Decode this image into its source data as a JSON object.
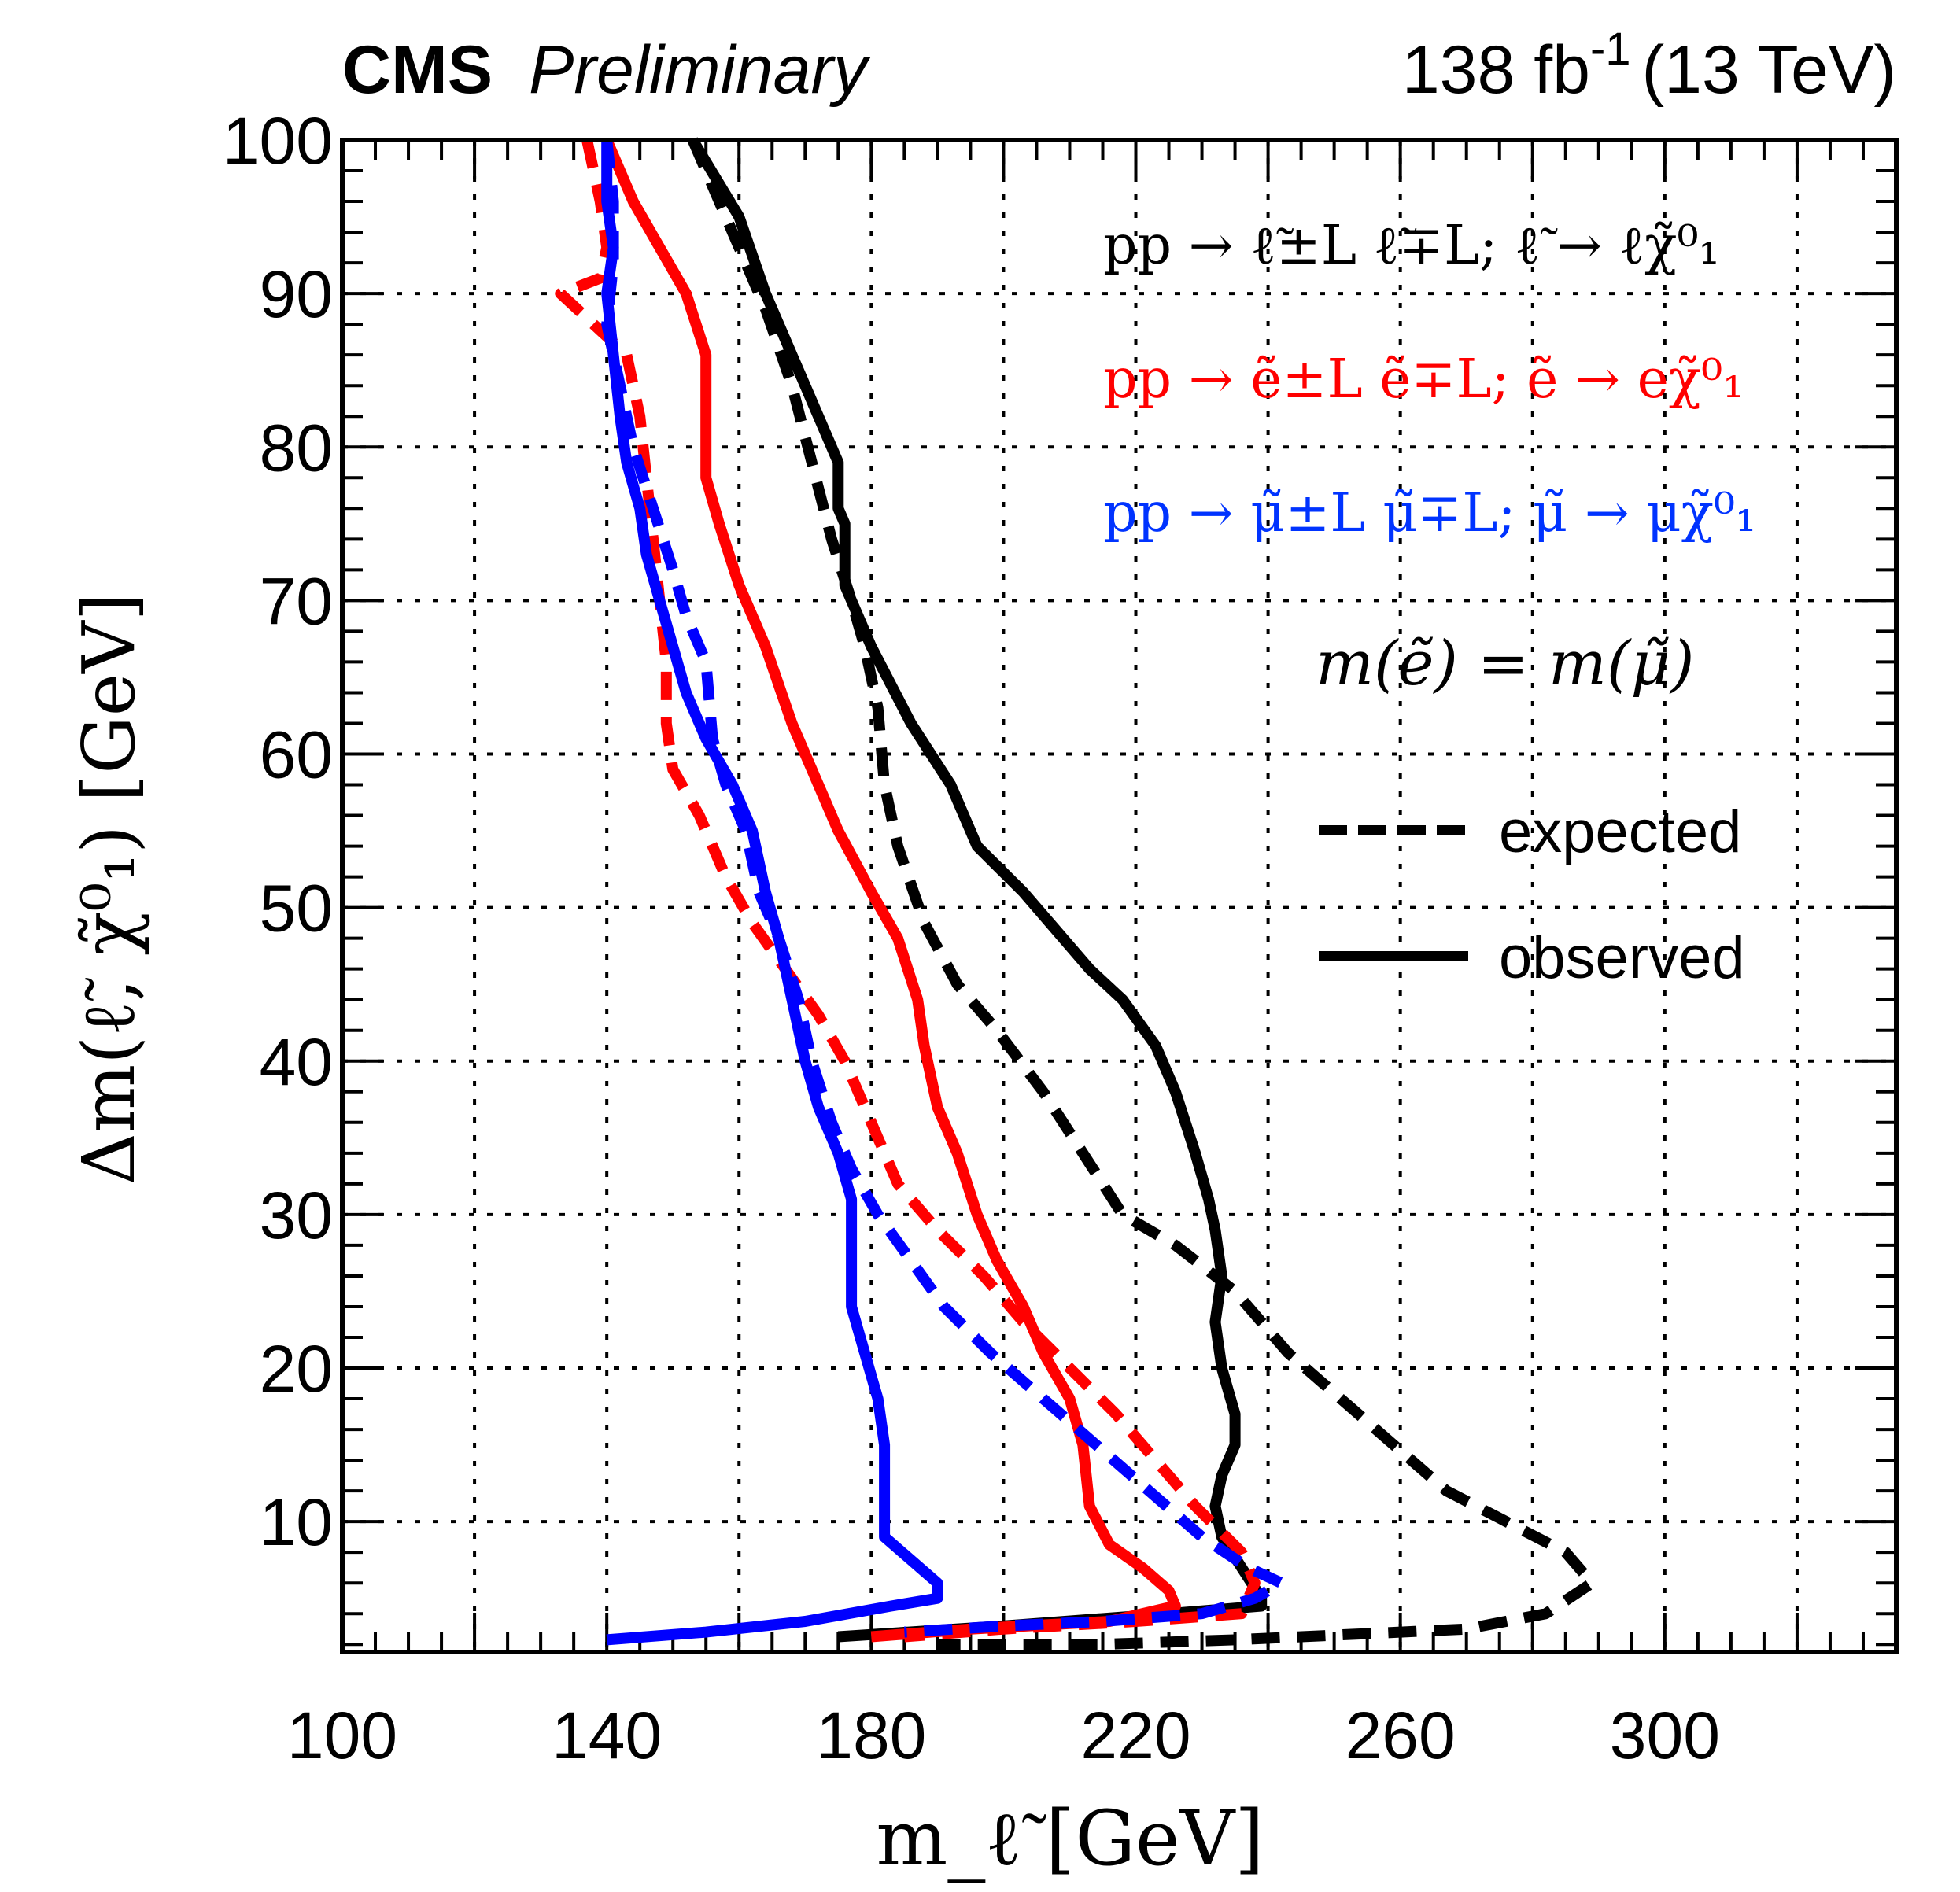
{
  "header": {
    "experiment": "CMS",
    "status": "Preliminary",
    "lumi_text": "138 fb",
    "lumi_exp": "-1",
    "energy_text": "(13 TeV)"
  },
  "legend": {
    "process_slepton": "pp → ℓ̃±L ℓ̃∓L; ℓ̃ → ℓχ̃⁰₁",
    "process_selectron": "pp → ẽ±L ẽ∓L; ẽ → eχ̃⁰₁",
    "process_smuon": "pp → μ̃±L μ̃∓L; μ̃ → μχ̃⁰₁",
    "mass_assumption": "m(ẽ) = m(μ̃)",
    "expected_label": "expected",
    "observed_label": "observed"
  },
  "colors": {
    "slepton": "#000000",
    "selectron": "#ff0000",
    "smuon": "#0000ff"
  },
  "chart_data": {
    "type": "line",
    "title": "CMS Preliminary — 138 fb^-1 (13 TeV)",
    "xlabel": "m_ℓ̃ [GeV]",
    "ylabel": "Δm(ℓ̃, χ̃⁰₁) [GeV]",
    "xlim": [
      100,
      335
    ],
    "ylim": [
      1.5,
      100
    ],
    "x_ticks": [
      100,
      140,
      180,
      220,
      260,
      300
    ],
    "y_ticks": [
      10,
      20,
      30,
      40,
      50,
      60,
      70,
      80,
      90,
      100
    ],
    "grid": true,
    "legend_position": "top-right",
    "series": [
      {
        "name": "slepton observed",
        "color": "#000000",
        "style": "solid",
        "points": [
          [
            153,
            100
          ],
          [
            160,
            95
          ],
          [
            164,
            90
          ],
          [
            171,
            83
          ],
          [
            175,
            79
          ],
          [
            175,
            76
          ],
          [
            176,
            75
          ],
          [
            176,
            71
          ],
          [
            180,
            67
          ],
          [
            186,
            62
          ],
          [
            192,
            58
          ],
          [
            196,
            54
          ],
          [
            203,
            51
          ],
          [
            209,
            48
          ],
          [
            213,
            46
          ],
          [
            218,
            44
          ],
          [
            223,
            41
          ],
          [
            226,
            38
          ],
          [
            229,
            34
          ],
          [
            231,
            31
          ],
          [
            232,
            29
          ],
          [
            233,
            26
          ],
          [
            232,
            23
          ],
          [
            233,
            20
          ],
          [
            235,
            17
          ],
          [
            235,
            15
          ],
          [
            233,
            13
          ],
          [
            232,
            11
          ],
          [
            233,
            9
          ],
          [
            236,
            7
          ],
          [
            239,
            5
          ],
          [
            239,
            4.5
          ],
          [
            225,
            4
          ],
          [
            200,
            3.2
          ],
          [
            175,
            2.5
          ]
        ]
      },
      {
        "name": "slepton expected",
        "color": "#000000",
        "style": "dashed",
        "points": [
          [
            153,
            100
          ],
          [
            157,
            96
          ],
          [
            160,
            93
          ],
          [
            164,
            89
          ],
          [
            168,
            84
          ],
          [
            171,
            79
          ],
          [
            174,
            74
          ],
          [
            177,
            70
          ],
          [
            179,
            67
          ],
          [
            181,
            63
          ],
          [
            182,
            58
          ],
          [
            184,
            54
          ],
          [
            188,
            49
          ],
          [
            193,
            45
          ],
          [
            199,
            42
          ],
          [
            206,
            38
          ],
          [
            212,
            34
          ],
          [
            218,
            30
          ],
          [
            226,
            28
          ],
          [
            235,
            25
          ],
          [
            243,
            21
          ],
          [
            251,
            18
          ],
          [
            259,
            15
          ],
          [
            267,
            12
          ],
          [
            276,
            10
          ],
          [
            285,
            8
          ],
          [
            289,
            6
          ],
          [
            282,
            4
          ],
          [
            270,
            3
          ],
          [
            255,
            2.7
          ],
          [
            235,
            2.3
          ],
          [
            215,
            2
          ],
          [
            190,
            2
          ]
        ]
      },
      {
        "name": "selectron observed",
        "color": "#ff0000",
        "style": "solid",
        "points": [
          [
            140,
            100
          ],
          [
            144,
            96
          ],
          [
            148,
            93
          ],
          [
            152,
            90
          ],
          [
            155,
            86
          ],
          [
            155,
            82
          ],
          [
            155,
            78
          ],
          [
            157,
            75
          ],
          [
            160,
            71
          ],
          [
            164,
            67
          ],
          [
            168,
            62
          ],
          [
            171,
            59
          ],
          [
            175,
            55
          ],
          [
            180,
            51
          ],
          [
            184,
            48
          ],
          [
            187,
            44
          ],
          [
            188,
            41
          ],
          [
            190,
            37
          ],
          [
            193,
            34
          ],
          [
            196,
            30
          ],
          [
            199,
            27
          ],
          [
            203,
            24
          ],
          [
            206,
            21
          ],
          [
            210,
            18
          ],
          [
            212,
            15
          ],
          [
            213,
            11
          ],
          [
            216,
            8.5
          ],
          [
            221,
            7
          ],
          [
            225,
            5.5
          ],
          [
            226,
            4.5
          ],
          [
            216,
            3.5
          ],
          [
            195,
            3
          ],
          [
            180,
            2.5
          ]
        ]
      },
      {
        "name": "selectron expected",
        "color": "#ff0000",
        "style": "dashed",
        "points": [
          [
            137,
            100
          ],
          [
            139,
            96
          ],
          [
            140,
            93
          ],
          [
            139,
            91
          ],
          [
            133,
            90
          ],
          [
            138,
            88
          ],
          [
            143,
            86
          ],
          [
            145,
            82
          ],
          [
            146,
            78
          ],
          [
            147,
            74
          ],
          [
            148,
            70
          ],
          [
            149,
            66
          ],
          [
            149,
            62
          ],
          [
            150,
            59
          ],
          [
            154,
            56
          ],
          [
            158,
            52
          ],
          [
            162,
            49
          ],
          [
            167,
            46
          ],
          [
            172,
            43
          ],
          [
            176,
            40
          ],
          [
            180,
            36
          ],
          [
            184,
            32
          ],
          [
            190,
            29
          ],
          [
            197,
            26
          ],
          [
            203,
            23
          ],
          [
            210,
            20
          ],
          [
            217,
            17
          ],
          [
            223,
            14
          ],
          [
            229,
            11
          ],
          [
            236,
            8
          ],
          [
            238,
            6
          ],
          [
            236,
            4
          ],
          [
            220,
            3.5
          ],
          [
            200,
            3
          ],
          [
            185,
            2.5
          ]
        ]
      },
      {
        "name": "smuon observed",
        "color": "#0000ff",
        "style": "solid",
        "points": [
          [
            140,
            100
          ],
          [
            140,
            96
          ],
          [
            141,
            93
          ],
          [
            140,
            90
          ],
          [
            141,
            86
          ],
          [
            142,
            82
          ],
          [
            143,
            79
          ],
          [
            145,
            76
          ],
          [
            146,
            73
          ],
          [
            148,
            70
          ],
          [
            150,
            67
          ],
          [
            152,
            64
          ],
          [
            155,
            61
          ],
          [
            159,
            58
          ],
          [
            162,
            55
          ],
          [
            164,
            51
          ],
          [
            166,
            48
          ],
          [
            168,
            44
          ],
          [
            170,
            40
          ],
          [
            172,
            37
          ],
          [
            175,
            34
          ],
          [
            177,
            31
          ],
          [
            177,
            27
          ],
          [
            177,
            24
          ],
          [
            179,
            21
          ],
          [
            181,
            18
          ],
          [
            182,
            15
          ],
          [
            182,
            12
          ],
          [
            182,
            9
          ],
          [
            186,
            7.5
          ],
          [
            190,
            6
          ],
          [
            190,
            5
          ],
          [
            183,
            4.5
          ],
          [
            170,
            3.5
          ],
          [
            155,
            2.8
          ],
          [
            140,
            2.3
          ]
        ]
      },
      {
        "name": "smuon expected",
        "color": "#0000ff",
        "style": "dashed",
        "points": [
          [
            140,
            100
          ],
          [
            141,
            96
          ],
          [
            141,
            92
          ],
          [
            140,
            88
          ],
          [
            142,
            84
          ],
          [
            144,
            80
          ],
          [
            147,
            76
          ],
          [
            150,
            72
          ],
          [
            152,
            69
          ],
          [
            155,
            66
          ],
          [
            156,
            61
          ],
          [
            158,
            58
          ],
          [
            161,
            55
          ],
          [
            163,
            51
          ],
          [
            166,
            48
          ],
          [
            169,
            44
          ],
          [
            171,
            40
          ],
          [
            174,
            36
          ],
          [
            177,
            33
          ],
          [
            181,
            30
          ],
          [
            186,
            27
          ],
          [
            191,
            24
          ],
          [
            198,
            21
          ],
          [
            206,
            18
          ],
          [
            214,
            15
          ],
          [
            222,
            12
          ],
          [
            230,
            9
          ],
          [
            237,
            7
          ],
          [
            242,
            6
          ],
          [
            238,
            5
          ],
          [
            230,
            4
          ],
          [
            215,
            3.5
          ],
          [
            200,
            3.2
          ],
          [
            185,
            2.8
          ]
        ]
      }
    ]
  }
}
